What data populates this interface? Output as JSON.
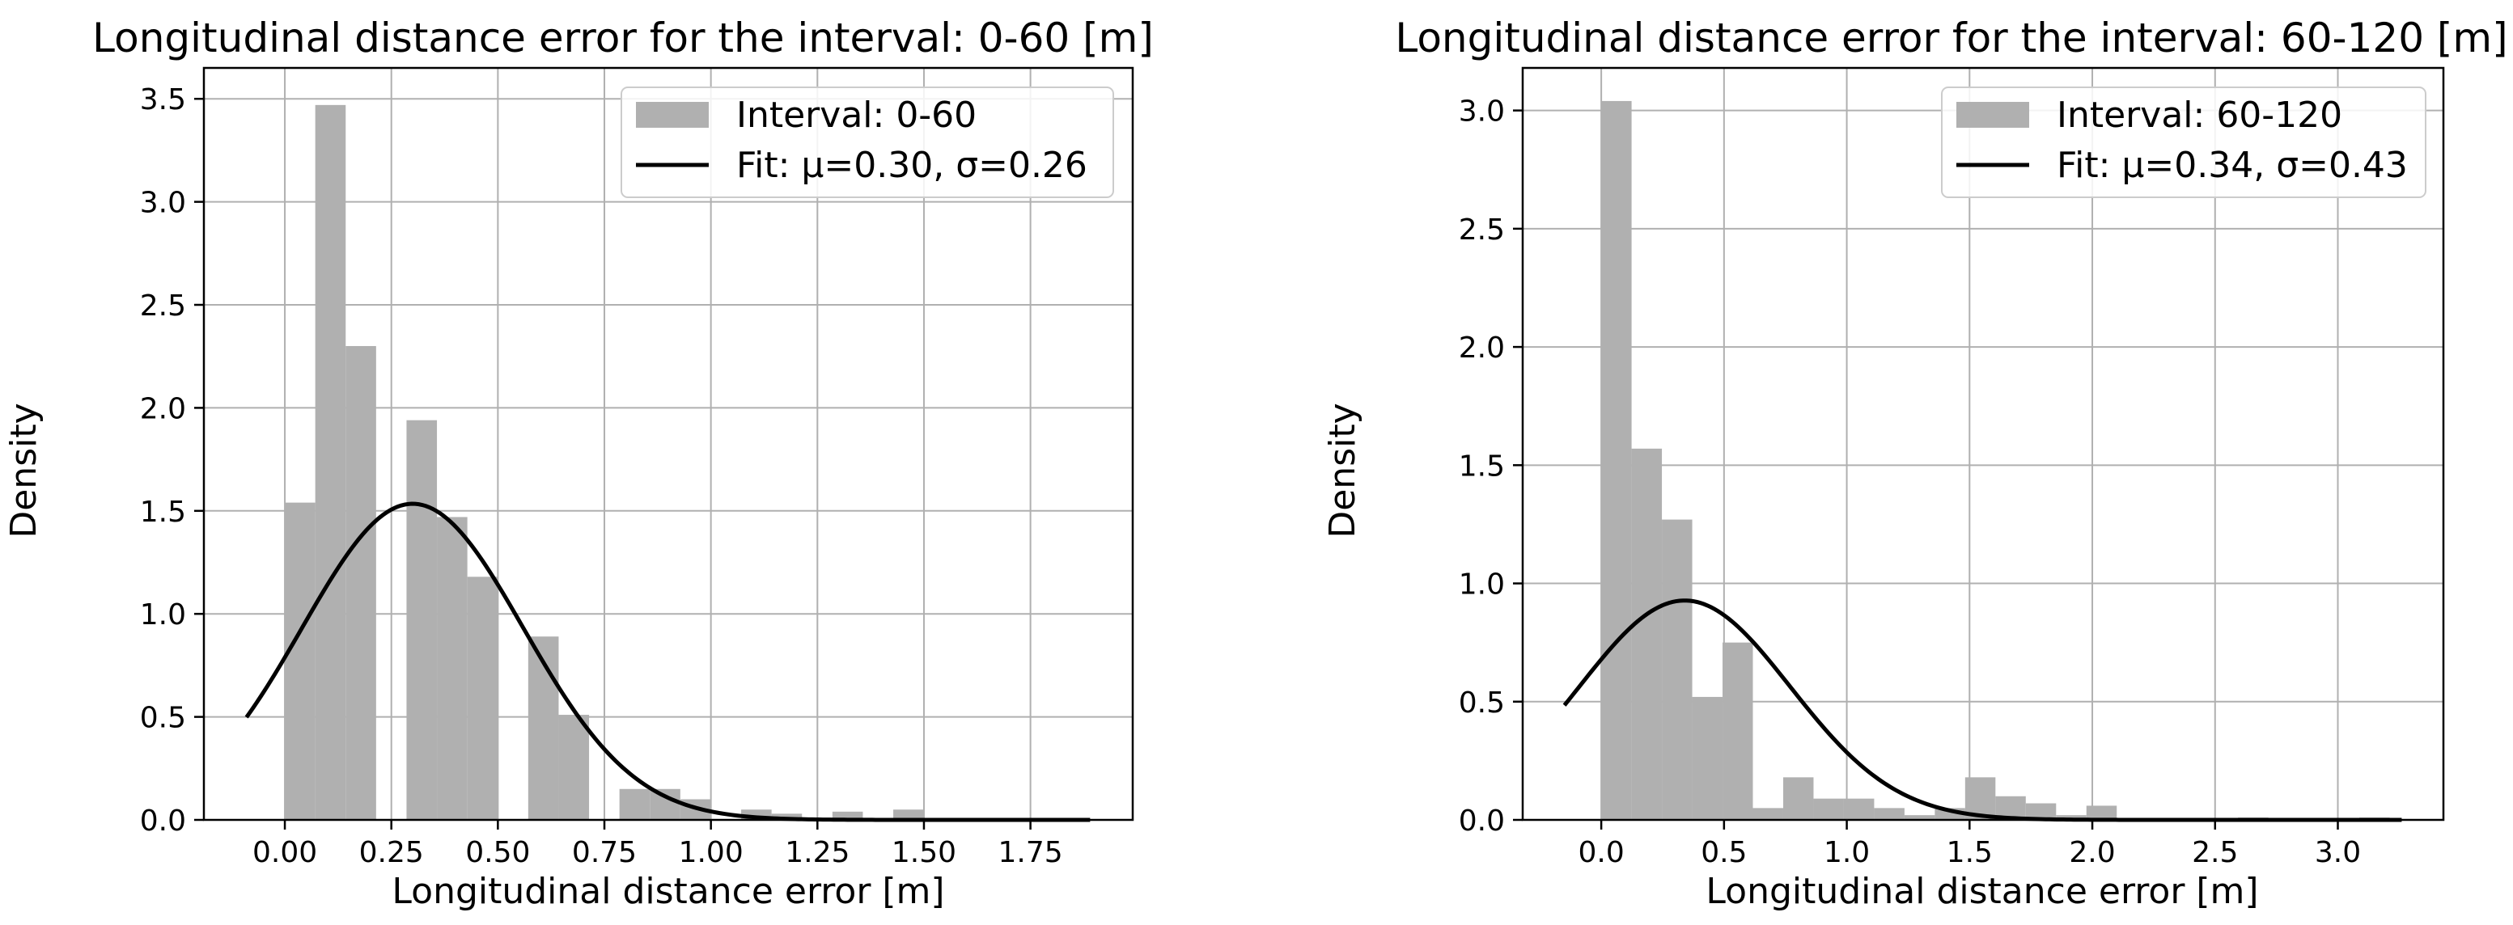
{
  "colors": {
    "bar": "#b0b0b0",
    "fit_line": "#000000",
    "grid": "#b0b0b0",
    "axes": "#000000",
    "legend_border": "#cccccc"
  },
  "chart_data": [
    {
      "type": "bar",
      "title": "Longitudinal distance error for the interval: 0-60 [m]",
      "xlabel": "Longitudinal distance error [m]",
      "ylabel": "Density",
      "xlim": [
        -0.19,
        1.99
      ],
      "ylim": [
        0,
        3.65
      ],
      "xticks": [
        0,
        0.25,
        0.5,
        0.75,
        1.0,
        1.25,
        1.5,
        1.75
      ],
      "xtick_labels": [
        "0.00",
        "0.25",
        "0.50",
        "0.75",
        "1.00",
        "1.25",
        "1.50",
        "1.75"
      ],
      "yticks": [
        0,
        0.5,
        1.0,
        1.5,
        2.0,
        2.5,
        3.0,
        3.5
      ],
      "ytick_labels": [
        "0.0",
        "0.5",
        "1.0",
        "1.5",
        "2.0",
        "2.5",
        "3.0",
        "3.5"
      ],
      "grid": true,
      "legend": {
        "placement": "top-right",
        "entries": [
          {
            "label": "Interval: 0-60",
            "kind": "bar"
          },
          {
            "label": "Fit: μ=0.30, σ=0.26",
            "kind": "line"
          }
        ]
      },
      "histogram": {
        "bin_start": 0.0,
        "bin_width": 0.0714,
        "values": [
          1.54,
          3.47,
          2.3,
          0.0,
          1.94,
          1.47,
          1.18,
          0.0,
          0.89,
          0.51,
          0.0,
          0.15,
          0.15,
          0.1,
          0.0,
          0.05,
          0.03,
          0.0,
          0.04,
          0.0,
          0.05,
          0.0,
          0.0,
          0.0,
          0.0
        ]
      },
      "fit": {
        "mu": 0.3,
        "sigma": 0.26,
        "x_start": -0.09,
        "x_end": 1.89
      }
    },
    {
      "type": "bar",
      "title": "Longitudinal distance error for the interval: 60-120 [m]",
      "xlabel": "Longitudinal distance error [m]",
      "ylabel": "Density",
      "xlim": [
        -0.32,
        3.43
      ],
      "ylim": [
        0,
        3.18
      ],
      "xticks": [
        0,
        0.5,
        1.0,
        1.5,
        2.0,
        2.5,
        3.0
      ],
      "xtick_labels": [
        "0.0",
        "0.5",
        "1.0",
        "1.5",
        "2.0",
        "2.5",
        "3.0"
      ],
      "yticks": [
        0,
        0.5,
        1.0,
        1.5,
        2.0,
        2.5,
        3.0
      ],
      "ytick_labels": [
        "0.0",
        "0.5",
        "1.0",
        "1.5",
        "2.0",
        "2.5",
        "3.0"
      ],
      "grid": true,
      "legend": {
        "placement": "top-right",
        "entries": [
          {
            "label": "Interval: 60-120",
            "kind": "bar"
          },
          {
            "label": "Fit: μ=0.34, σ=0.43",
            "kind": "line"
          }
        ]
      },
      "histogram": {
        "bin_start": 0.0,
        "bin_width": 0.1235,
        "values": [
          3.04,
          1.57,
          1.27,
          0.52,
          0.75,
          0.05,
          0.18,
          0.09,
          0.09,
          0.05,
          0.02,
          0.05,
          0.18,
          0.1,
          0.07,
          0.02,
          0.06,
          0.0,
          0.0,
          0.0,
          0.0,
          0.01,
          0.0,
          0.0,
          0.0,
          0.01
        ]
      },
      "fit": {
        "mu": 0.34,
        "sigma": 0.43,
        "x_start": -0.15,
        "x_end": 3.26
      }
    }
  ]
}
